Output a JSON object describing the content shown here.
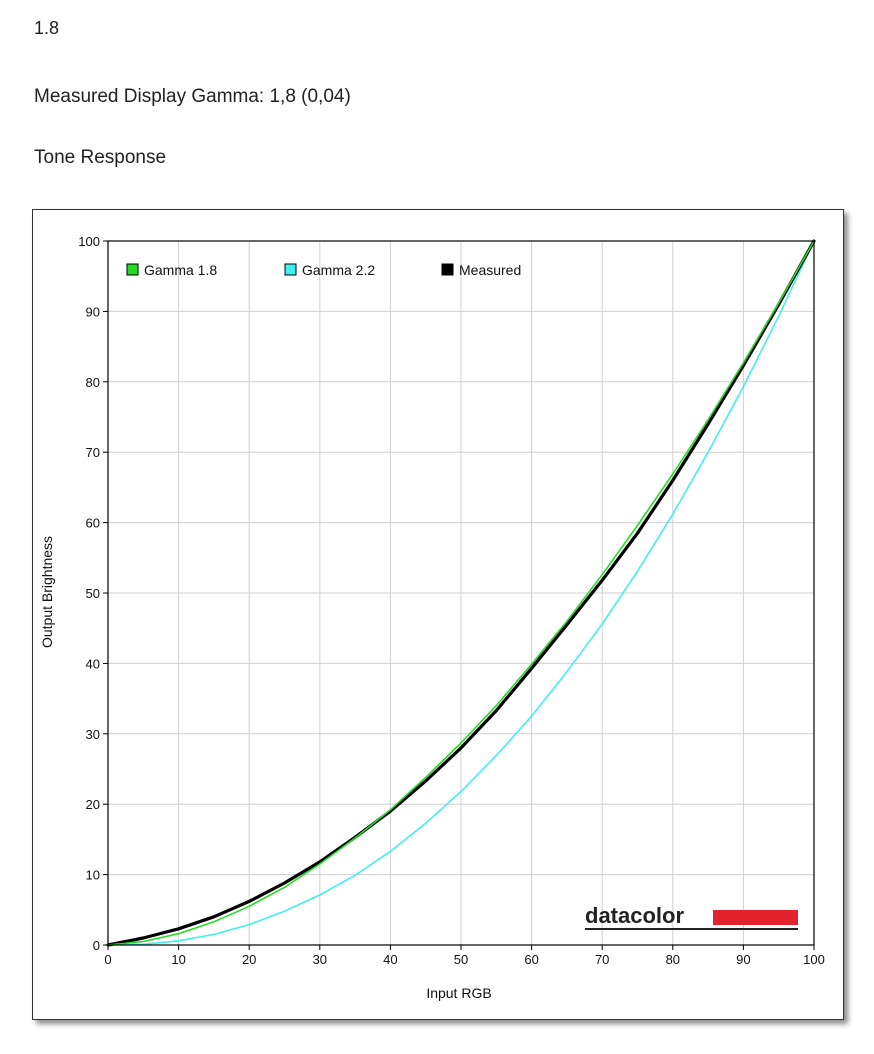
{
  "headings": {
    "value": "1.8",
    "measured": "Measured Display Gamma: 1,8 (0,04)",
    "tone": "Tone Response"
  },
  "logo": {
    "text": "datacolor",
    "bar_color": "#e2232e"
  },
  "chart_data": {
    "type": "line",
    "title": "",
    "xlabel": "Input RGB",
    "ylabel": "Output Brightness",
    "xlim": [
      0,
      100
    ],
    "ylim": [
      0,
      100
    ],
    "xticks": [
      0,
      10,
      20,
      30,
      40,
      50,
      60,
      70,
      80,
      90,
      100
    ],
    "yticks": [
      0,
      10,
      20,
      30,
      40,
      50,
      60,
      70,
      80,
      90,
      100
    ],
    "grid": true,
    "legend_position": "top-left",
    "x": [
      0,
      5,
      10,
      15,
      20,
      25,
      30,
      35,
      40,
      45,
      50,
      55,
      60,
      65,
      70,
      75,
      80,
      85,
      90,
      95,
      100
    ],
    "series": [
      {
        "name": "Gamma 1.8",
        "color": "#22dd22",
        "values": [
          0,
          0.5,
          1.6,
          3.3,
          5.5,
          8.2,
          11.5,
          15.2,
          19.2,
          23.8,
          28.7,
          34.0,
          39.9,
          46.0,
          52.6,
          59.6,
          66.9,
          74.6,
          82.7,
          91.2,
          100
        ]
      },
      {
        "name": "Gamma 2.2",
        "color": "#40f0f0",
        "values": [
          0,
          0.1,
          0.6,
          1.5,
          2.9,
          4.8,
          7.1,
          9.9,
          13.3,
          17.3,
          21.8,
          26.9,
          32.5,
          38.8,
          45.6,
          53.1,
          61.2,
          70.0,
          79.3,
          89.3,
          100
        ]
      },
      {
        "name": "Measured",
        "color": "#000000",
        "values": [
          0,
          1.0,
          2.3,
          4.0,
          6.2,
          8.8,
          11.8,
          15.3,
          19.0,
          23.3,
          28.0,
          33.3,
          39.3,
          45.5,
          51.8,
          58.5,
          66.0,
          74.0,
          82.3,
          91.0,
          100
        ]
      }
    ]
  }
}
